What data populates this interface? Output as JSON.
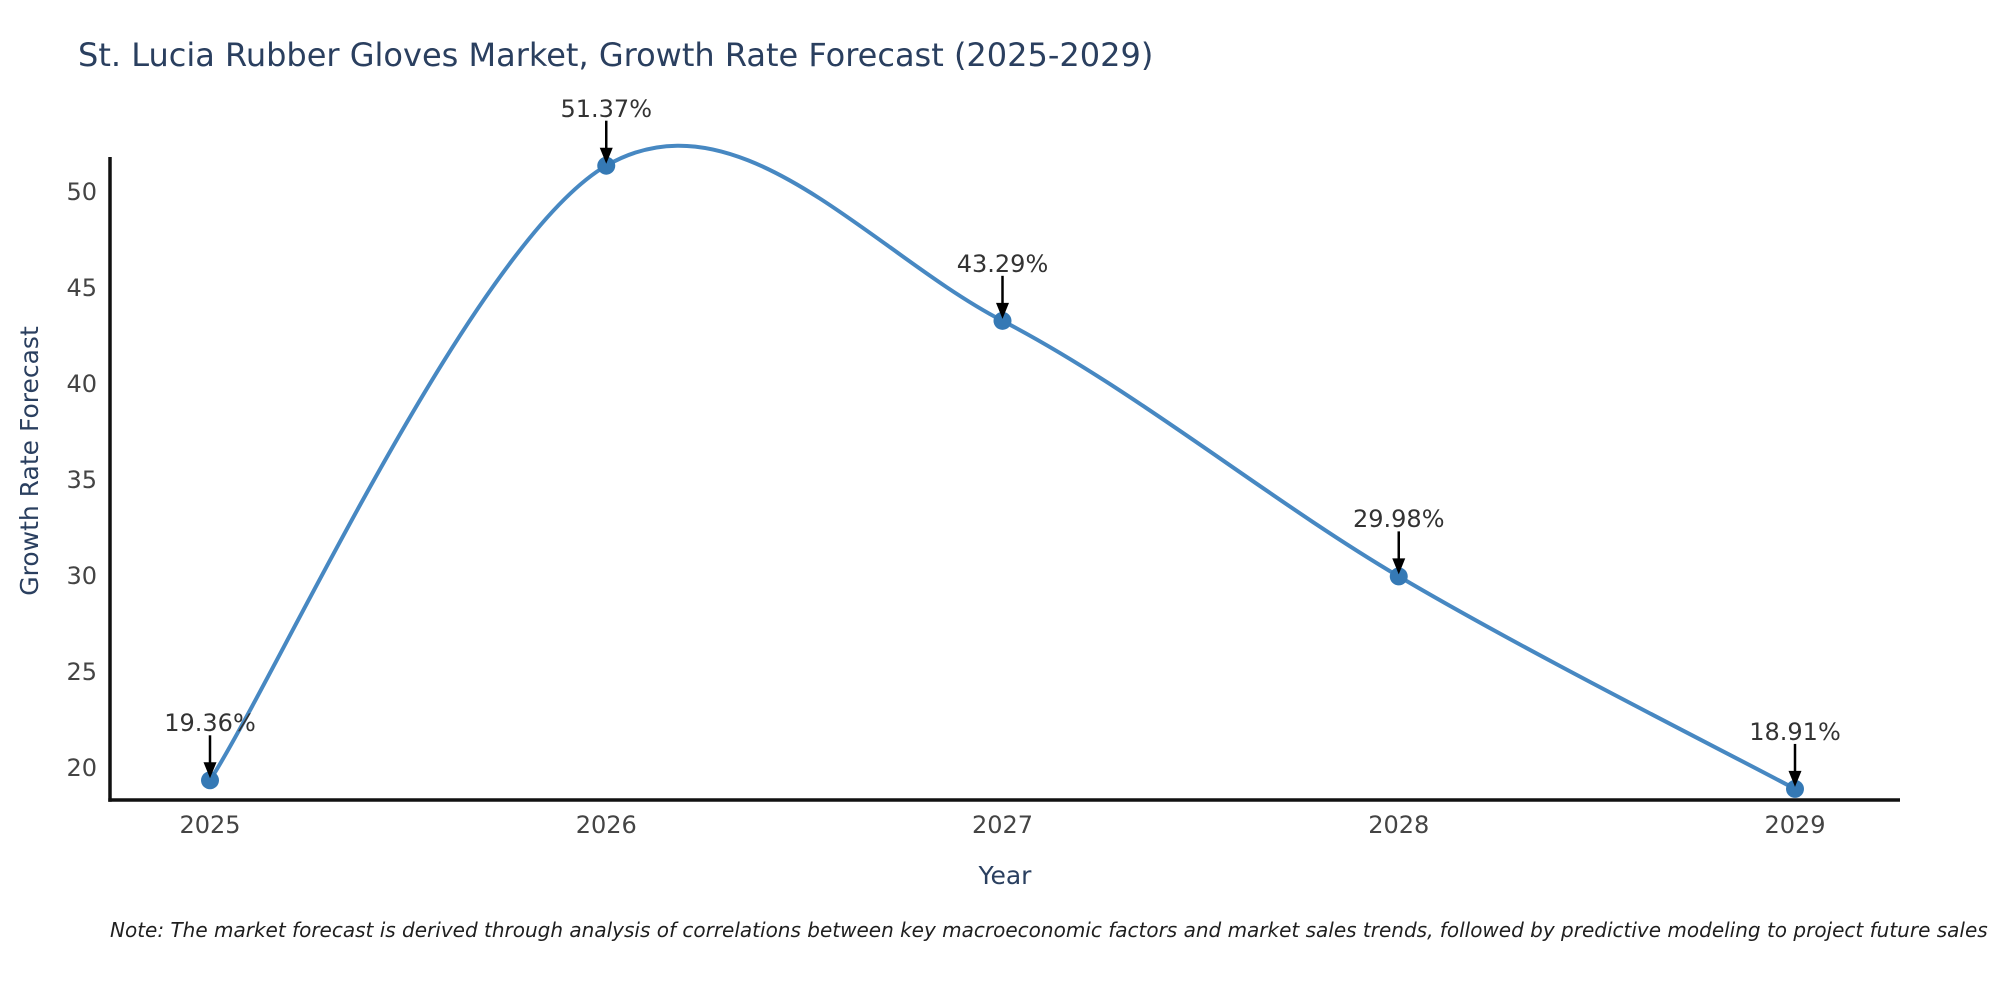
{
  "title": "St. Lucia Rubber Gloves Market, Growth Rate Forecast (2025-2029)",
  "note": "Note: The market forecast is derived through analysis of correlations between key macroeconomic factors and market sales trends, followed by predictive modeling to project future sales",
  "chart_data": {
    "type": "line",
    "title": "St. Lucia Rubber Gloves Market, Growth Rate Forecast (2025-2029)",
    "xlabel": "Year",
    "ylabel": "Growth Rate Forecast",
    "categories": [
      "2025",
      "2026",
      "2027",
      "2028",
      "2029"
    ],
    "values": [
      19.36,
      51.37,
      43.29,
      29.98,
      18.91
    ],
    "point_labels": [
      "19.36%",
      "51.37%",
      "43.29%",
      "29.98%",
      "18.91%"
    ],
    "yticks": [
      20,
      25,
      30,
      35,
      40,
      45,
      50
    ],
    "ylim": [
      18.3,
      51.8
    ],
    "line_shape": "spline",
    "grid": false,
    "legend_position": "none",
    "colors": {
      "line": "#4788c2",
      "marker": "#3579b5",
      "axis": "#111111",
      "arrow": "#000000",
      "title_text": "#2a3f5f",
      "tick_text": "#444444",
      "annotation_text": "#333333"
    }
  }
}
